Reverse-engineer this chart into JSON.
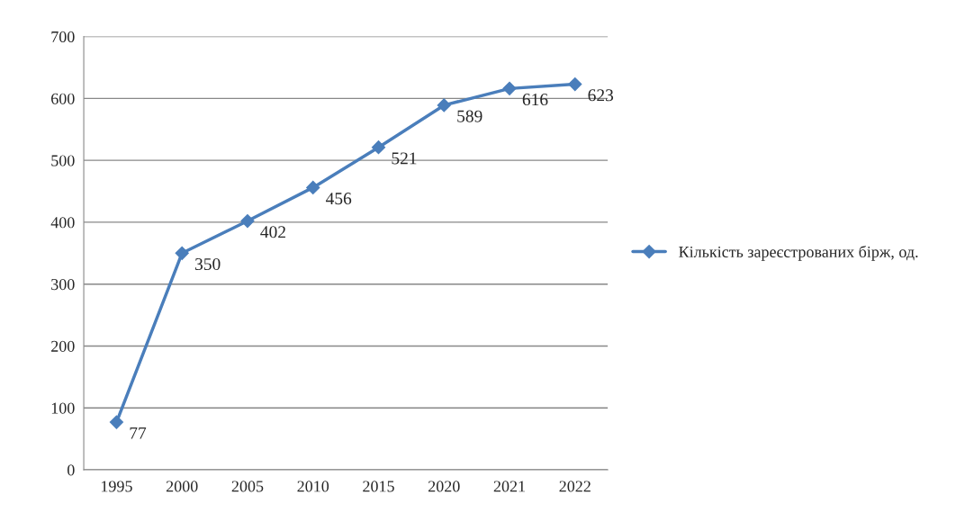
{
  "chart_data": {
    "type": "line",
    "categories": [
      "1995",
      "2000",
      "2005",
      "2010",
      "2015",
      "2020",
      "2021",
      "2022"
    ],
    "series": [
      {
        "name": "Кількість зареєстрованих бірж, од.",
        "color": "#4a7ebb",
        "values": [
          77,
          350,
          402,
          456,
          521,
          589,
          616,
          623
        ]
      }
    ],
    "ylim": [
      0,
      700
    ],
    "yticks": [
      0,
      100,
      200,
      300,
      400,
      500,
      600,
      700
    ],
    "grid": "y",
    "legend": "right",
    "marker": "diamond",
    "line_style": "solid",
    "data_labels": true
  }
}
